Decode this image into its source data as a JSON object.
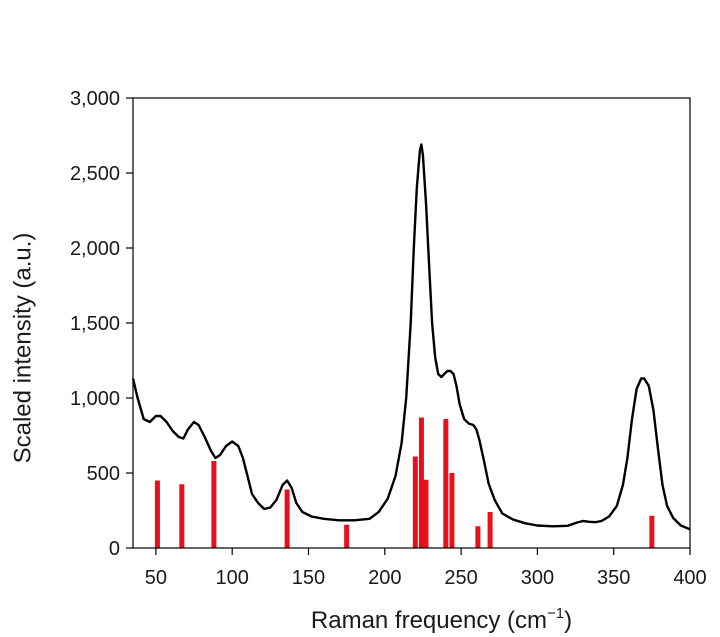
{
  "chart_data": {
    "type": "line",
    "xlabel_main": "Raman frequency (cm",
    "xlabel_sup": "−1",
    "xlabel_end": ")",
    "ylabel": "Scaled intensity (a.u.)",
    "xlim": [
      35,
      400
    ],
    "ylim": [
      0,
      3000
    ],
    "xticks": [
      50,
      100,
      150,
      200,
      250,
      300,
      350,
      400
    ],
    "xtick_labels": [
      "50",
      "100",
      "150",
      "200",
      "250",
      "300",
      "350",
      "400"
    ],
    "yticks": [
      0,
      500,
      1000,
      1500,
      2000,
      2500,
      3000
    ],
    "ytick_labels": [
      "0",
      "500",
      "1,000",
      "1,500",
      "2,000",
      "2,500",
      "3,000"
    ],
    "grid": false,
    "series": [
      {
        "kind": "line",
        "color": "#000000",
        "points": [
          [
            35,
            1130
          ],
          [
            38,
            1000
          ],
          [
            42,
            860
          ],
          [
            46,
            840
          ],
          [
            50,
            880
          ],
          [
            53,
            880
          ],
          [
            57,
            840
          ],
          [
            61,
            780
          ],
          [
            65,
            740
          ],
          [
            68,
            730
          ],
          [
            71,
            790
          ],
          [
            75,
            840
          ],
          [
            78,
            820
          ],
          [
            82,
            740
          ],
          [
            86,
            650
          ],
          [
            89,
            600
          ],
          [
            92,
            620
          ],
          [
            96,
            680
          ],
          [
            100,
            710
          ],
          [
            104,
            680
          ],
          [
            107,
            600
          ],
          [
            110,
            480
          ],
          [
            113,
            360
          ],
          [
            117,
            300
          ],
          [
            121,
            260
          ],
          [
            125,
            270
          ],
          [
            129,
            320
          ],
          [
            133,
            420
          ],
          [
            136,
            450
          ],
          [
            139,
            400
          ],
          [
            142,
            300
          ],
          [
            146,
            240
          ],
          [
            152,
            210
          ],
          [
            160,
            195
          ],
          [
            170,
            185
          ],
          [
            180,
            185
          ],
          [
            190,
            195
          ],
          [
            196,
            240
          ],
          [
            202,
            330
          ],
          [
            207,
            480
          ],
          [
            211,
            700
          ],
          [
            214,
            1000
          ],
          [
            217,
            1500
          ],
          [
            219,
            2000
          ],
          [
            221,
            2400
          ],
          [
            223,
            2650
          ],
          [
            224,
            2690
          ],
          [
            225,
            2620
          ],
          [
            227,
            2300
          ],
          [
            229,
            1900
          ],
          [
            231,
            1500
          ],
          [
            233,
            1270
          ],
          [
            235,
            1160
          ],
          [
            237,
            1140
          ],
          [
            239,
            1160
          ],
          [
            241,
            1180
          ],
          [
            243,
            1180
          ],
          [
            245,
            1160
          ],
          [
            247,
            1080
          ],
          [
            249,
            960
          ],
          [
            252,
            860
          ],
          [
            255,
            830
          ],
          [
            258,
            820
          ],
          [
            260,
            790
          ],
          [
            262,
            720
          ],
          [
            265,
            580
          ],
          [
            268,
            430
          ],
          [
            272,
            320
          ],
          [
            277,
            230
          ],
          [
            284,
            190
          ],
          [
            292,
            165
          ],
          [
            300,
            150
          ],
          [
            310,
            145
          ],
          [
            320,
            148
          ],
          [
            326,
            170
          ],
          [
            330,
            180
          ],
          [
            334,
            175
          ],
          [
            338,
            172
          ],
          [
            342,
            180
          ],
          [
            347,
            210
          ],
          [
            352,
            280
          ],
          [
            356,
            420
          ],
          [
            359,
            600
          ],
          [
            362,
            860
          ],
          [
            365,
            1060
          ],
          [
            368,
            1130
          ],
          [
            370,
            1130
          ],
          [
            373,
            1080
          ],
          [
            376,
            920
          ],
          [
            379,
            660
          ],
          [
            382,
            420
          ],
          [
            385,
            280
          ],
          [
            389,
            200
          ],
          [
            394,
            150
          ],
          [
            400,
            125
          ]
        ]
      },
      {
        "kind": "stick",
        "color": "#e8101a",
        "values": [
          [
            51,
            450
          ],
          [
            67,
            425
          ],
          [
            88,
            580
          ],
          [
            136,
            390
          ],
          [
            175,
            155
          ],
          [
            220,
            610
          ],
          [
            224,
            870
          ],
          [
            227,
            455
          ],
          [
            240,
            860
          ],
          [
            244,
            500
          ],
          [
            261,
            145
          ],
          [
            269,
            240
          ],
          [
            375,
            215
          ]
        ]
      }
    ]
  }
}
